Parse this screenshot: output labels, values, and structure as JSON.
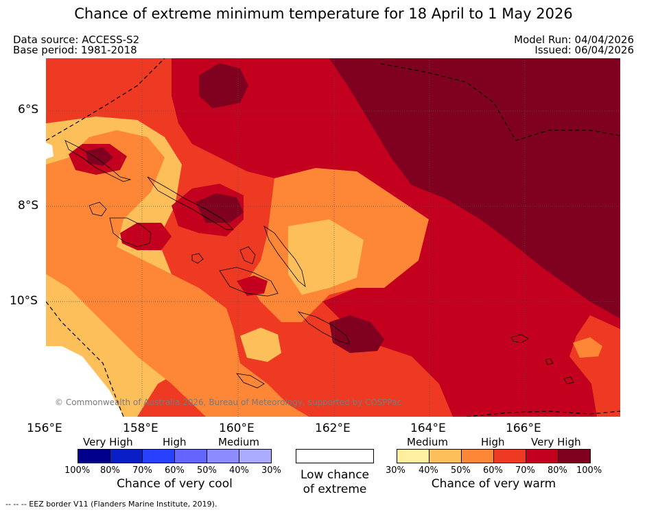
{
  "title": "Chance of extreme minimum temperature for 18 April to 1 May 2026",
  "meta": {
    "data_source": "Data source: ACCESS-S2",
    "base_period": "Base period: 1981-2018",
    "model_run": "Model Run: 04/04/2026",
    "issued": "Issued: 06/04/2026"
  },
  "map": {
    "copyright": "© Commonwealth of Australia 2026, Bureau of Meteorology, supported by COSPPac",
    "lat_labels": [
      "6°S",
      "8°S",
      "10°S"
    ],
    "lon_labels": [
      "156°E",
      "158°E",
      "160°E",
      "162°E",
      "164°E",
      "166°E"
    ]
  },
  "legend": {
    "cool": {
      "title": "Chance of very cool",
      "categories": [
        "Very High",
        "High",
        "Medium"
      ],
      "percents": [
        "100%",
        "80%",
        "70%",
        "60%",
        "50%",
        "40%",
        "30%"
      ],
      "colors": [
        "#00008c",
        "#0a1ec8",
        "#2840ff",
        "#6464ff",
        "#8c8cff",
        "#aaaaff"
      ]
    },
    "neutral": {
      "title_line1": "Low chance",
      "title_line2": "of extreme",
      "color": "#ffffff"
    },
    "warm": {
      "title": "Chance of very warm",
      "categories": [
        "Medium",
        "High",
        "Very High"
      ],
      "percents": [
        "30%",
        "40%",
        "50%",
        "60%",
        "70%",
        "80%",
        "100%"
      ],
      "colors": [
        "#fff0a0",
        "#fdbf5a",
        "#fd8637",
        "#ee3a23",
        "#c3001e",
        "#800020"
      ]
    }
  },
  "footer": "--  --  -- EEZ border V11 (Flanders Marine Institute, 2019)."
}
